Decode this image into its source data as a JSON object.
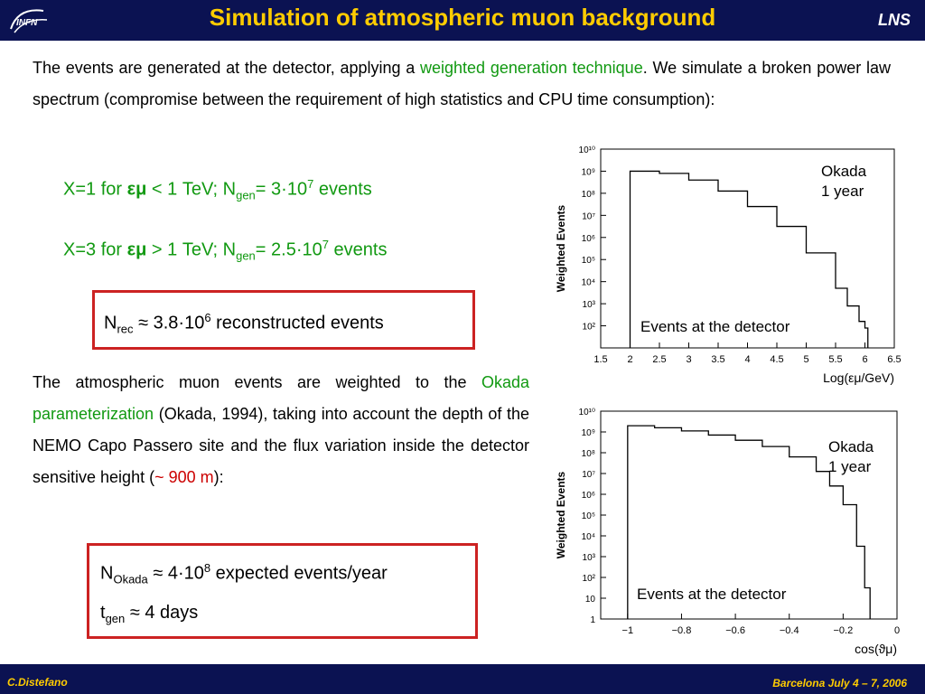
{
  "header": {
    "logo_text": "INFN",
    "title": "Simulation of atmospheric muon background",
    "lab": "LNS"
  },
  "footer": {
    "author": "C.Distefano",
    "venue": "Barcelona July 4 – 7, 2006"
  },
  "intro": {
    "before": "The events are generated at the detector, applying a ",
    "highlight": "weighted generation technique",
    "after": ". We simulate a broken power law spectrum (compromise between the requirement of high statistics and CPU time consumption):"
  },
  "bullets": [
    {
      "x": "X=1 for ",
      "sym": "εμ",
      "cond": " < 1 TeV;  N",
      "sub": "gen",
      "eq": "= 3·10",
      "sup": "7",
      "tail": " events"
    },
    {
      "x": "X=3 for ",
      "sym": "εμ",
      "cond": " > 1 TeV;  N",
      "sub": "gen",
      "eq": "= 2.5·10",
      "sup": "7",
      "tail": " events"
    }
  ],
  "box1": {
    "n": "N",
    "sub": "rec",
    "approx": " ≈ 3.8·10",
    "sup": "6",
    "tail": " reconstructed events"
  },
  "para2": {
    "before": "The atmospheric muon events are weighted to the ",
    "highlight": "Okada parameterization",
    "middle": " (Okada, 1994), taking into account the depth of the NEMO Capo Passero site and the flux variation inside the detector sensitive height (",
    "red": "~ 900 m",
    "after": "):"
  },
  "box2": {
    "line1": {
      "n": "N",
      "sub": "Okada",
      "approx": " ≈ 4·10",
      "sup": "8",
      "tail": " expected events/year"
    },
    "line2": {
      "n": "t",
      "sub": "gen",
      "approx": " ≈ 4 days"
    }
  },
  "chart_data": [
    {
      "type": "line",
      "ylabel": "Weighted Events",
      "xlabel": "Log(εμ/GeV)",
      "annotation_top": [
        "Okada",
        "1 year"
      ],
      "annotation_bottom": "Events at the detector",
      "xlim": [
        1.5,
        6.5
      ],
      "ylim_log10": [
        1,
        10
      ],
      "log_y": true,
      "x_ticks": [
        "1.5",
        "2",
        "2.5",
        "3",
        "3.5",
        "4",
        "4.5",
        "5",
        "5.5",
        "6",
        "6.5"
      ],
      "y_ticks": [
        "10²",
        "10³",
        "10⁴",
        "10⁵",
        "10⁶",
        "10⁷",
        "10⁸",
        "10⁹",
        "10¹⁰"
      ],
      "x": [
        2.0,
        2.5,
        3.0,
        3.5,
        4.0,
        4.5,
        5.0,
        5.5,
        5.7,
        5.9,
        6.0,
        6.05
      ],
      "y_log10": [
        9.0,
        8.9,
        8.6,
        8.1,
        7.4,
        6.5,
        5.3,
        3.7,
        2.9,
        2.2,
        1.9,
        1.5
      ]
    },
    {
      "type": "line",
      "ylabel": "Weighted Events",
      "xlabel": "cos(ϑμ)",
      "annotation_top": [
        "Okada",
        "1 year"
      ],
      "annotation_bottom": "Events at the detector",
      "xlim": [
        -1.1,
        0
      ],
      "ylim_log10": [
        0,
        10
      ],
      "log_y": true,
      "x_ticks": [
        "−1",
        "−0.8",
        "−0.6",
        "−0.4",
        "−0.2",
        "0"
      ],
      "y_ticks": [
        "1",
        "10",
        "10²",
        "10³",
        "10⁴",
        "10⁵",
        "10⁶",
        "10⁷",
        "10⁸",
        "10⁹",
        "10¹⁰"
      ],
      "x": [
        -1.0,
        -0.9,
        -0.8,
        -0.7,
        -0.6,
        -0.5,
        -0.4,
        -0.3,
        -0.25,
        -0.2,
        -0.15,
        -0.12,
        -0.1
      ],
      "y_log10": [
        9.3,
        9.2,
        9.05,
        8.85,
        8.6,
        8.3,
        7.8,
        7.1,
        6.4,
        5.5,
        3.5,
        1.5,
        0.0
      ]
    }
  ]
}
